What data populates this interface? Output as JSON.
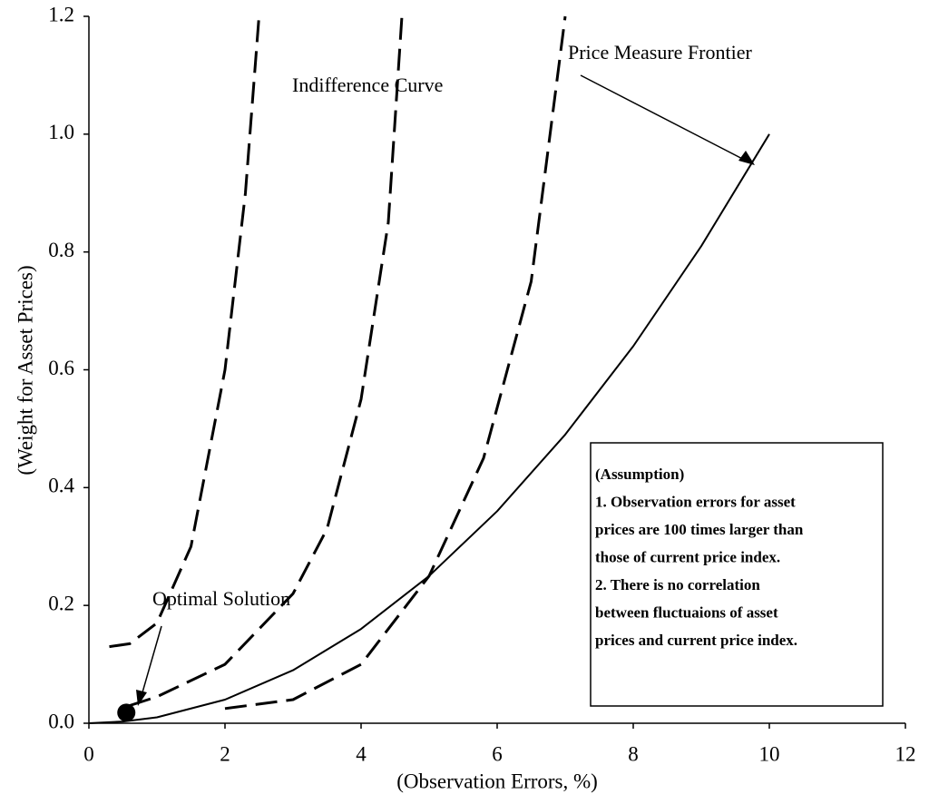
{
  "chart_data": {
    "type": "line",
    "xlabel": "(Observation Errors, %)",
    "ylabel": "(Weight for Asset Prices)",
    "xlim": [
      0,
      12
    ],
    "ylim": [
      0,
      1.2
    ],
    "xticks": [
      0,
      2,
      4,
      6,
      8,
      10,
      12
    ],
    "yticks": [
      {
        "value": 0,
        "label": "0.0"
      },
      0.2,
      0.4,
      0.6,
      0.8,
      {
        "value": 1,
        "label": "1.0"
      },
      1.2
    ],
    "color": "#000000",
    "series": [
      {
        "style": "solid",
        "x": [
          0,
          0.5,
          1,
          2,
          3,
          4,
          5,
          6,
          7,
          8,
          9,
          10
        ],
        "values": [
          0,
          0.003,
          0.01,
          0.04,
          0.09,
          0.16,
          0.25,
          0.36,
          0.49,
          0.64,
          0.81,
          1.0
        ]
      },
      {
        "style": "dashed",
        "x": [
          0.3,
          0.6,
          1.0,
          1.5,
          2.0,
          2.3,
          2.5
        ],
        "values": [
          0.13,
          0.135,
          0.17,
          0.3,
          0.6,
          0.9,
          1.2
        ]
      },
      {
        "style": "dashed",
        "x": [
          0.6,
          1.0,
          2,
          3,
          3.5,
          4,
          4.4,
          4.6
        ],
        "values": [
          0.03,
          0.045,
          0.1,
          0.22,
          0.33,
          0.55,
          0.85,
          1.2
        ]
      },
      {
        "style": "dashed",
        "x": [
          2,
          3,
          4,
          5,
          5.8,
          6.5,
          7.0
        ],
        "values": [
          0.025,
          0.04,
          0.1,
          0.25,
          0.45,
          0.75,
          1.2
        ]
      }
    ],
    "optimal_point": {
      "x": 0.55,
      "y": 0.018
    },
    "annotations": [
      "Indifference Curve",
      "Price Measure Frontier",
      "Optimal Solution"
    ],
    "note_box": [
      "(Assumption)",
      "1. Observation errors for  asset",
      "prices are 100 times larger than",
      "those of current price index.",
      "2. There is no correlation",
      "between fluctuaions of asset",
      "prices and current price index."
    ]
  }
}
